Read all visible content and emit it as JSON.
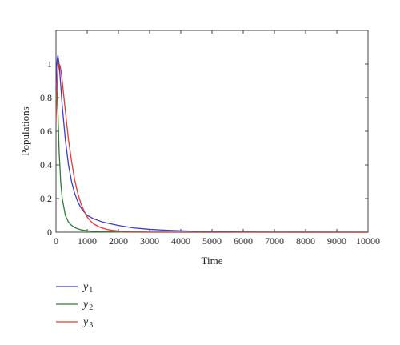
{
  "chart_data": {
    "type": "line",
    "title": "",
    "xlabel": "Time",
    "ylabel": "Populations",
    "xlim": [
      0,
      10000
    ],
    "ylim": [
      0,
      1.2
    ],
    "xticks": [
      0,
      1000,
      2000,
      3000,
      4000,
      5000,
      6000,
      7000,
      8000,
      9000,
      10000
    ],
    "yticks": [
      0,
      0.2,
      0.4,
      0.6,
      0.8,
      1
    ],
    "grid": false,
    "legend_position": "below",
    "series": [
      {
        "name": "y1",
        "name_base": "y",
        "name_sub": "1",
        "color": "#3c3cc8",
        "x": [
          0,
          20,
          40,
          60,
          100,
          150,
          200,
          300,
          400,
          500,
          600,
          700,
          800,
          900,
          1000,
          1200,
          1500,
          2000,
          2500,
          3000,
          3500,
          4000,
          4500,
          5000,
          6000,
          7000,
          8000,
          10000
        ],
        "y": [
          0.85,
          0.98,
          1.03,
          1.05,
          1.0,
          0.88,
          0.75,
          0.55,
          0.4,
          0.3,
          0.23,
          0.18,
          0.145,
          0.12,
          0.1,
          0.08,
          0.06,
          0.04,
          0.025,
          0.017,
          0.012,
          0.008,
          0.005,
          0.003,
          0.001,
          0.0005,
          0.0002,
          0
        ]
      },
      {
        "name": "y2",
        "name_base": "y",
        "name_sub": "2",
        "color": "#2e7d32",
        "x": [
          0,
          20,
          40,
          60,
          80,
          100,
          150,
          200,
          300,
          400,
          500,
          600,
          700,
          800,
          1000,
          1200,
          1500,
          2000,
          3000,
          10000
        ],
        "y": [
          0.78,
          0.85,
          0.82,
          0.72,
          0.6,
          0.48,
          0.3,
          0.2,
          0.1,
          0.06,
          0.04,
          0.028,
          0.02,
          0.014,
          0.008,
          0.005,
          0.002,
          0.001,
          0,
          0
        ]
      },
      {
        "name": "y3",
        "name_base": "y",
        "name_sub": "3",
        "color": "#e53935",
        "x": [
          0,
          20,
          50,
          80,
          100,
          130,
          160,
          200,
          300,
          400,
          500,
          600,
          700,
          800,
          900,
          1000,
          1100,
          1200,
          1400,
          1600,
          1800,
          2000,
          2500,
          3000,
          4000,
          10000
        ],
        "y": [
          0.65,
          0.8,
          0.93,
          0.99,
          1.0,
          0.99,
          0.96,
          0.9,
          0.72,
          0.55,
          0.42,
          0.31,
          0.23,
          0.17,
          0.125,
          0.09,
          0.068,
          0.05,
          0.03,
          0.018,
          0.011,
          0.007,
          0.002,
          0.0005,
          0,
          0
        ]
      }
    ]
  }
}
